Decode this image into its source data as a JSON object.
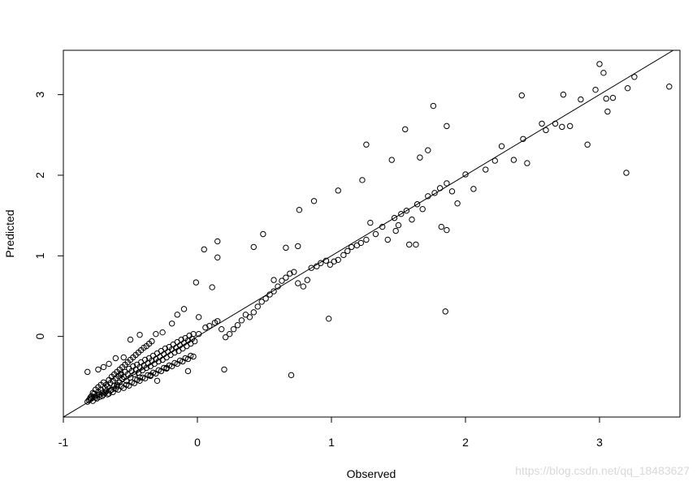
{
  "chart_data": {
    "type": "scatter",
    "title": "",
    "xlabel": "Observed",
    "ylabel": "Predicted",
    "xlim": [
      -1,
      3.6
    ],
    "ylim": [
      -1,
      3.55
    ],
    "x_ticks": [
      -1,
      0,
      1,
      2,
      3
    ],
    "y_ticks": [
      0,
      1,
      2,
      3
    ],
    "x_tick_labels": [
      "-1",
      "0",
      "1",
      "2",
      "3"
    ],
    "y_tick_labels": [
      "0",
      "1",
      "2",
      "3"
    ],
    "grid": false,
    "legend": "none",
    "marker": "open-circle",
    "reference_line": {
      "type": "identity",
      "from": [
        -1,
        -1
      ],
      "to": [
        3.6,
        3.6
      ]
    },
    "series": [
      {
        "points": [
          [
            -0.82,
            -0.81
          ],
          [
            -0.8,
            -0.78
          ],
          [
            -0.79,
            -0.74
          ],
          [
            -0.78,
            -0.8
          ],
          [
            -0.77,
            -0.71
          ],
          [
            -0.76,
            -0.76
          ],
          [
            -0.75,
            -0.73
          ],
          [
            -0.74,
            -0.69
          ],
          [
            -0.73,
            -0.75
          ],
          [
            -0.72,
            -0.66
          ],
          [
            -0.71,
            -0.7
          ],
          [
            -0.7,
            -0.72
          ],
          [
            -0.69,
            -0.64
          ],
          [
            -0.68,
            -0.68
          ],
          [
            -0.67,
            -0.62
          ],
          [
            -0.66,
            -0.71
          ],
          [
            -0.65,
            -0.58
          ],
          [
            -0.64,
            -0.66
          ],
          [
            -0.63,
            -0.55
          ],
          [
            -0.62,
            -0.61
          ],
          [
            -0.61,
            -0.52
          ],
          [
            -0.6,
            -0.6
          ],
          [
            -0.59,
            -0.49
          ],
          [
            -0.58,
            -0.57
          ],
          [
            -0.57,
            -0.46
          ],
          [
            -0.56,
            -0.53
          ],
          [
            -0.55,
            -0.5
          ],
          [
            -0.54,
            -0.44
          ],
          [
            -0.53,
            -0.55
          ],
          [
            -0.52,
            -0.47
          ],
          [
            -0.51,
            -0.4
          ],
          [
            -0.5,
            -0.51
          ],
          [
            -0.49,
            -0.43
          ],
          [
            -0.48,
            -0.37
          ],
          [
            -0.47,
            -0.47
          ],
          [
            -0.46,
            -0.41
          ],
          [
            -0.45,
            -0.35
          ],
          [
            -0.44,
            -0.45
          ],
          [
            -0.43,
            -0.38
          ],
          [
            -0.42,
            -0.32
          ],
          [
            -0.41,
            -0.42
          ],
          [
            -0.4,
            -0.36
          ],
          [
            -0.39,
            -0.29
          ],
          [
            -0.38,
            -0.39
          ],
          [
            -0.37,
            -0.33
          ],
          [
            -0.36,
            -0.27
          ],
          [
            -0.35,
            -0.37
          ],
          [
            -0.34,
            -0.3
          ],
          [
            -0.33,
            -0.24
          ],
          [
            -0.32,
            -0.34
          ],
          [
            -0.31,
            -0.28
          ],
          [
            -0.3,
            -0.21
          ],
          [
            -0.29,
            -0.31
          ],
          [
            -0.28,
            -0.25
          ],
          [
            -0.27,
            -0.18
          ],
          [
            -0.26,
            -0.29
          ],
          [
            -0.25,
            -0.22
          ],
          [
            -0.24,
            -0.15
          ],
          [
            -0.23,
            -0.26
          ],
          [
            -0.22,
            -0.19
          ],
          [
            -0.21,
            -0.13
          ],
          [
            -0.2,
            -0.23
          ],
          [
            -0.19,
            -0.16
          ],
          [
            -0.18,
            -0.1
          ],
          [
            -0.17,
            -0.2
          ],
          [
            -0.16,
            -0.14
          ],
          [
            -0.15,
            -0.07
          ],
          [
            -0.14,
            -0.18
          ],
          [
            -0.13,
            -0.11
          ],
          [
            -0.12,
            -0.04
          ],
          [
            -0.11,
            -0.15
          ],
          [
            -0.1,
            -0.08
          ],
          [
            -0.09,
            -0.02
          ],
          [
            -0.08,
            -0.12
          ],
          [
            -0.07,
            -0.05
          ],
          [
            -0.06,
            0.01
          ],
          [
            -0.05,
            -0.09
          ],
          [
            -0.04,
            -0.03
          ],
          [
            -0.03,
            0.03
          ],
          [
            -0.02,
            -0.06
          ],
          [
            -0.8,
            -0.76
          ],
          [
            -0.78,
            -0.7
          ],
          [
            -0.76,
            -0.66
          ],
          [
            -0.74,
            -0.63
          ],
          [
            -0.72,
            -0.6
          ],
          [
            -0.7,
            -0.57
          ],
          [
            -0.68,
            -0.6
          ],
          [
            -0.66,
            -0.54
          ],
          [
            -0.64,
            -0.5
          ],
          [
            -0.62,
            -0.47
          ],
          [
            -0.6,
            -0.44
          ],
          [
            -0.58,
            -0.41
          ],
          [
            -0.56,
            -0.38
          ],
          [
            -0.54,
            -0.35
          ],
          [
            -0.52,
            -0.32
          ],
          [
            -0.5,
            -0.29
          ],
          [
            -0.48,
            -0.26
          ],
          [
            -0.46,
            -0.23
          ],
          [
            -0.44,
            -0.2
          ],
          [
            -0.42,
            -0.17
          ],
          [
            -0.4,
            -0.14
          ],
          [
            -0.38,
            -0.12
          ],
          [
            -0.36,
            -0.09
          ],
          [
            -0.34,
            -0.06
          ],
          [
            -0.81,
            -0.79
          ],
          [
            -0.79,
            -0.77
          ],
          [
            -0.77,
            -0.75
          ],
          [
            -0.75,
            -0.77
          ],
          [
            -0.73,
            -0.72
          ],
          [
            -0.71,
            -0.74
          ],
          [
            -0.69,
            -0.7
          ],
          [
            -0.67,
            -0.72
          ],
          [
            -0.65,
            -0.67
          ],
          [
            -0.63,
            -0.69
          ],
          [
            -0.61,
            -0.65
          ],
          [
            -0.59,
            -0.66
          ],
          [
            -0.57,
            -0.62
          ],
          [
            -0.55,
            -0.64
          ],
          [
            -0.53,
            -0.6
          ],
          [
            -0.51,
            -0.61
          ],
          [
            -0.49,
            -0.57
          ],
          [
            -0.47,
            -0.58
          ],
          [
            -0.45,
            -0.54
          ],
          [
            -0.43,
            -0.55
          ],
          [
            -0.41,
            -0.51
          ],
          [
            -0.39,
            -0.52
          ],
          [
            -0.37,
            -0.48
          ],
          [
            -0.35,
            -0.49
          ],
          [
            -0.33,
            -0.45
          ],
          [
            -0.31,
            -0.46
          ],
          [
            -0.29,
            -0.42
          ],
          [
            -0.27,
            -0.43
          ],
          [
            -0.25,
            -0.39
          ],
          [
            -0.23,
            -0.4
          ],
          [
            -0.21,
            -0.36
          ],
          [
            -0.19,
            -0.37
          ],
          [
            -0.17,
            -0.33
          ],
          [
            -0.15,
            -0.34
          ],
          [
            -0.13,
            -0.3
          ],
          [
            -0.11,
            -0.31
          ],
          [
            -0.09,
            -0.27
          ],
          [
            -0.07,
            -0.28
          ],
          [
            -0.05,
            -0.24
          ],
          [
            -0.03,
            -0.25
          ],
          [
            -0.82,
            -0.44
          ],
          [
            -0.74,
            -0.41
          ],
          [
            -0.7,
            -0.38
          ],
          [
            -0.66,
            -0.34
          ],
          [
            -0.61,
            -0.27
          ],
          [
            -0.55,
            -0.26
          ],
          [
            -0.5,
            -0.04
          ],
          [
            -0.43,
            0.02
          ],
          [
            -0.31,
            0.03
          ],
          [
            -0.26,
            0.05
          ],
          [
            -0.19,
            0.16
          ],
          [
            -0.15,
            0.27
          ],
          [
            -0.1,
            0.34
          ],
          [
            -0.07,
            -0.43
          ],
          [
            0.01,
            0.03
          ],
          [
            0.06,
            0.11
          ],
          [
            0.09,
            0.13
          ],
          [
            0.13,
            0.17
          ],
          [
            0.15,
            0.19
          ],
          [
            0.18,
            0.09
          ],
          [
            0.21,
            -0.01
          ],
          [
            0.24,
            0.03
          ],
          [
            0.27,
            0.09
          ],
          [
            0.3,
            0.14
          ],
          [
            0.33,
            0.2
          ],
          [
            0.36,
            0.27
          ],
          [
            0.39,
            0.24
          ],
          [
            0.42,
            0.3
          ],
          [
            0.45,
            0.37
          ],
          [
            0.48,
            0.43
          ],
          [
            0.51,
            0.47
          ],
          [
            0.54,
            0.52
          ],
          [
            0.57,
            0.56
          ],
          [
            0.6,
            0.62
          ],
          [
            0.63,
            0.69
          ],
          [
            0.66,
            0.73
          ],
          [
            0.69,
            0.78
          ],
          [
            0.72,
            0.8
          ],
          [
            0.75,
            0.66
          ],
          [
            0.79,
            0.62
          ],
          [
            0.82,
            0.7
          ],
          [
            0.85,
            0.85
          ],
          [
            0.89,
            0.87
          ],
          [
            0.92,
            0.91
          ],
          [
            0.96,
            0.94
          ],
          [
            0.99,
            0.89
          ],
          [
            1.02,
            0.93
          ],
          [
            1.05,
            0.95
          ],
          [
            1.09,
            1.01
          ],
          [
            1.12,
            1.06
          ],
          [
            1.15,
            1.11
          ],
          [
            1.19,
            1.13
          ],
          [
            1.22,
            1.16
          ],
          [
            1.26,
            1.2
          ],
          [
            1.29,
            1.41
          ],
          [
            1.33,
            1.27
          ],
          [
            1.38,
            1.36
          ],
          [
            1.42,
            1.2
          ],
          [
            1.47,
            1.47
          ],
          [
            1.52,
            1.52
          ],
          [
            1.56,
            1.56
          ],
          [
            1.6,
            1.45
          ],
          [
            1.64,
            1.64
          ],
          [
            1.68,
            1.58
          ],
          [
            1.72,
            1.74
          ],
          [
            1.77,
            1.78
          ],
          [
            1.81,
            1.84
          ],
          [
            1.86,
            1.9
          ],
          [
            1.9,
            1.8
          ],
          [
            1.94,
            1.65
          ],
          [
            2.0,
            2.01
          ],
          [
            2.06,
            1.83
          ],
          [
            2.15,
            2.07
          ],
          [
            2.22,
            2.18
          ],
          [
            2.27,
            2.36
          ],
          [
            2.36,
            2.19
          ],
          [
            2.43,
            2.45
          ],
          [
            2.46,
            2.15
          ],
          [
            2.57,
            2.64
          ],
          [
            2.6,
            2.56
          ],
          [
            2.67,
            2.64
          ],
          [
            2.72,
            2.6
          ],
          [
            2.78,
            2.61
          ],
          [
            2.86,
            2.94
          ],
          [
            2.91,
            2.38
          ],
          [
            2.97,
            3.06
          ],
          [
            3.0,
            3.38
          ],
          [
            3.03,
            3.27
          ],
          [
            3.05,
            2.95
          ],
          [
            3.06,
            2.79
          ],
          [
            3.1,
            2.96
          ],
          [
            3.2,
            2.03
          ],
          [
            3.21,
            3.08
          ],
          [
            3.26,
            3.22
          ],
          [
            3.52,
            3.1
          ],
          [
            0.05,
            1.08
          ],
          [
            0.15,
            1.18
          ],
          [
            0.15,
            0.98
          ],
          [
            -0.01,
            0.67
          ],
          [
            0.11,
            0.61
          ],
          [
            0.42,
            1.11
          ],
          [
            0.49,
            1.27
          ],
          [
            0.57,
            0.7
          ],
          [
            0.66,
            1.1
          ],
          [
            0.75,
            1.12
          ],
          [
            0.76,
            1.57
          ],
          [
            0.87,
            1.68
          ],
          [
            1.05,
            1.81
          ],
          [
            1.23,
            1.94
          ],
          [
            1.26,
            2.38
          ],
          [
            1.45,
            2.19
          ],
          [
            1.55,
            2.57
          ],
          [
            1.66,
            2.22
          ],
          [
            1.72,
            2.31
          ],
          [
            1.76,
            2.86
          ],
          [
            1.86,
            2.61
          ],
          [
            2.42,
            2.99
          ],
          [
            2.73,
            3.0
          ],
          [
            0.7,
            -0.48
          ],
          [
            0.98,
            0.22
          ],
          [
            1.85,
            0.31
          ],
          [
            1.82,
            1.36
          ],
          [
            1.86,
            1.32
          ],
          [
            1.5,
            1.38
          ],
          [
            1.58,
            1.14
          ],
          [
            1.63,
            1.14
          ],
          [
            1.48,
            1.31
          ],
          [
            0.2,
            -0.41
          ],
          [
            0.01,
            0.24
          ],
          [
            -0.35,
            -0.48
          ],
          [
            -0.43,
            -0.51
          ],
          [
            -0.23,
            -0.39
          ],
          [
            -0.3,
            -0.55
          ],
          [
            -0.57,
            -0.48
          ],
          [
            -0.6,
            -0.62
          ]
        ]
      }
    ]
  },
  "watermark": "https://blog.csdn.net/qq_18483627"
}
